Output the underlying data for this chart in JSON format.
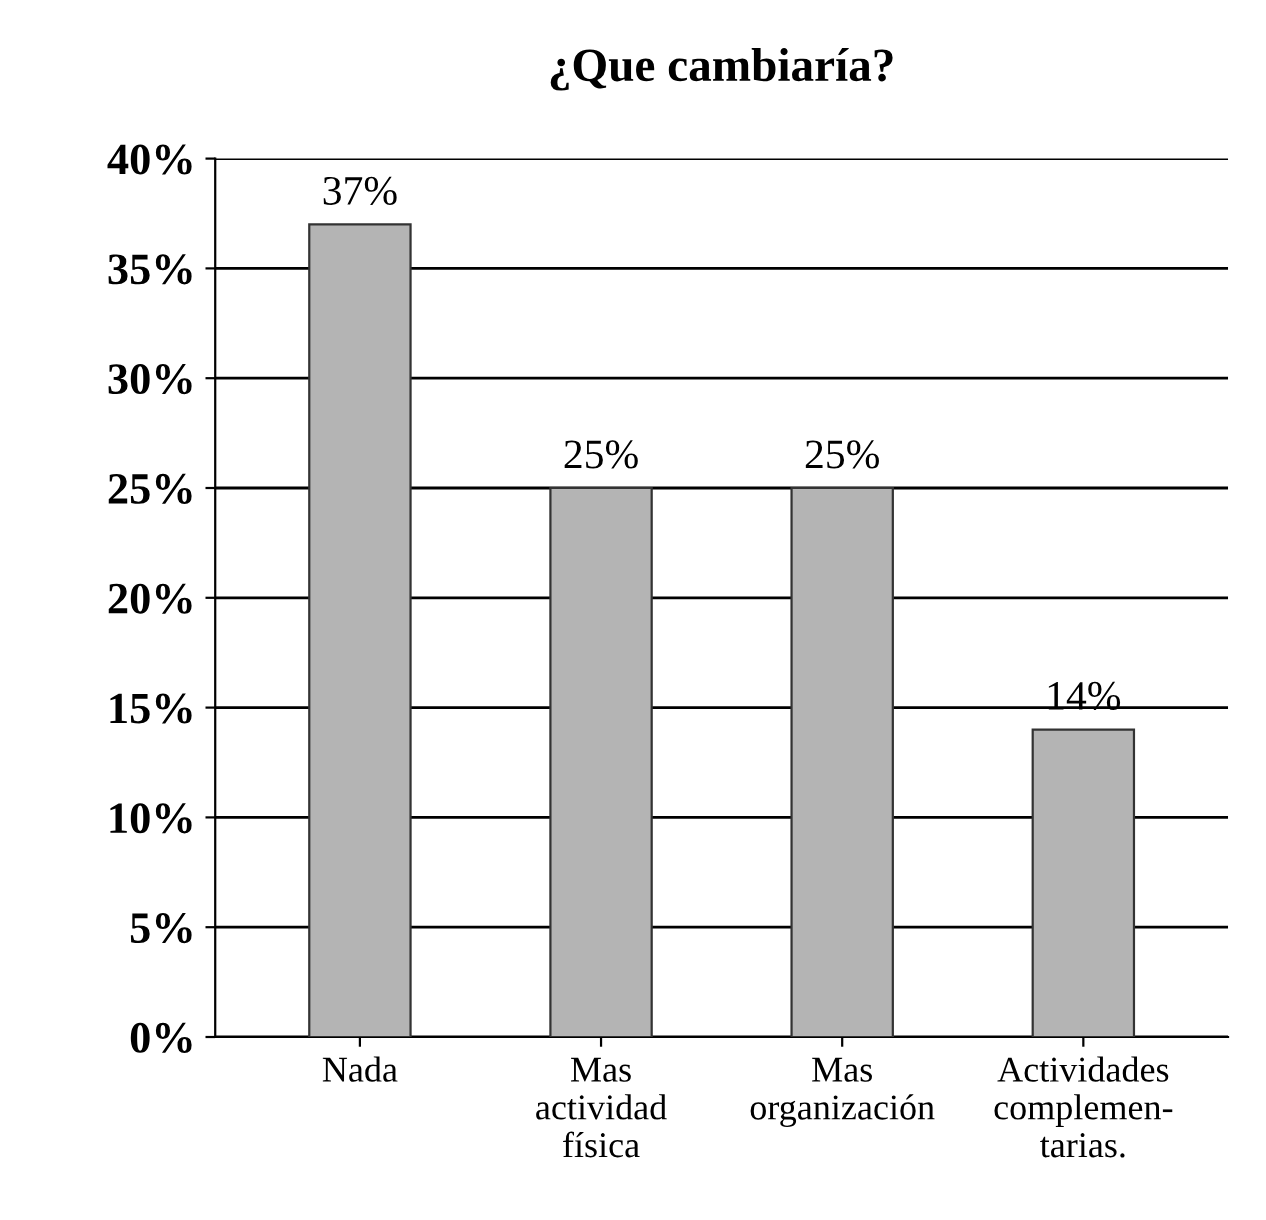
{
  "chart_data": {
    "type": "bar",
    "title": "¿Que cambiaría?",
    "categories": [
      "Nada",
      "Mas\nactividad\nfísica",
      "Mas\norganización",
      "Actividades\ncomplemen-\ntarias."
    ],
    "values": [
      37,
      25,
      25,
      14
    ],
    "value_labels": [
      "37%",
      "25%",
      "25%",
      "14%"
    ],
    "color": "#b4b4b4",
    "ylim": [
      0,
      40
    ],
    "yticks": [
      {
        "value": 0,
        "label": "0%"
      },
      {
        "value": 5,
        "label": "5%"
      },
      {
        "value": 10,
        "label": "10%"
      },
      {
        "value": 15,
        "label": "15%"
      },
      {
        "value": 20,
        "label": "20%"
      },
      {
        "value": 25,
        "label": "25%"
      },
      {
        "value": 30,
        "label": "30%"
      },
      {
        "value": 35,
        "label": "35%"
      },
      {
        "value": 40,
        "label": "40%"
      }
    ],
    "grid": "y",
    "legend": false
  }
}
